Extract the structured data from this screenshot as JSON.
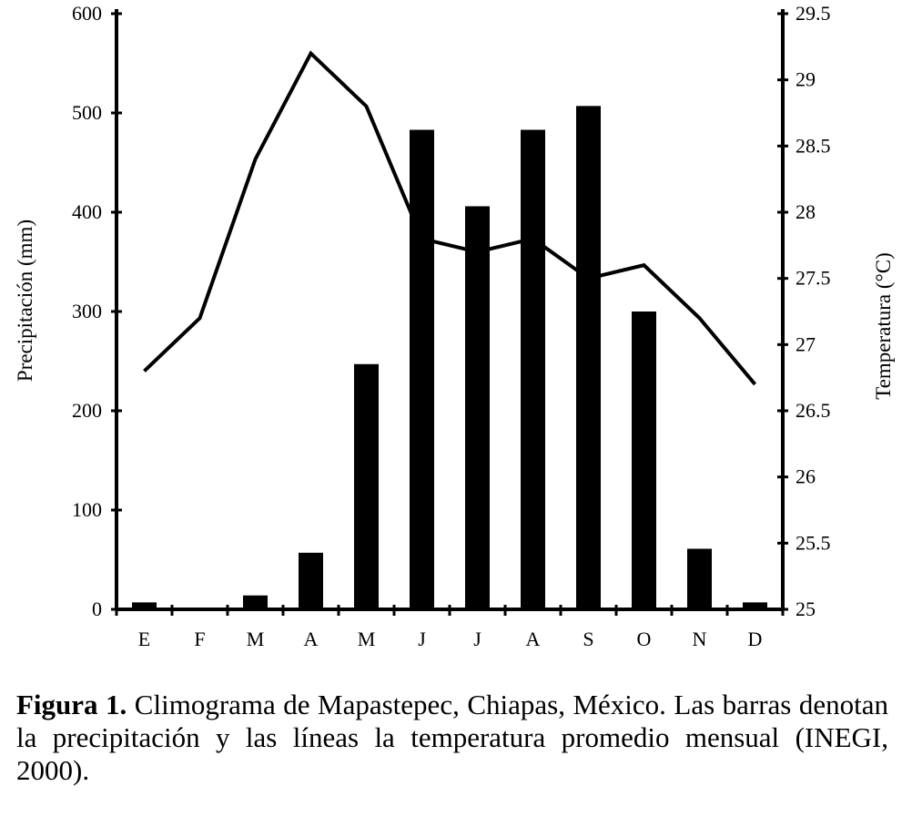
{
  "chart_data": {
    "type": "bar+line",
    "categories": [
      "E",
      "F",
      "M",
      "A",
      "M",
      "J",
      "J",
      "A",
      "S",
      "O",
      "N",
      "D"
    ],
    "series": [
      {
        "name": "Precipitación",
        "kind": "bar",
        "axis": "left",
        "values": [
          7,
          0,
          14,
          57,
          247,
          483,
          406,
          483,
          507,
          300,
          61,
          7
        ]
      },
      {
        "name": "Temperatura",
        "kind": "line",
        "axis": "right",
        "values": [
          26.8,
          27.2,
          28.4,
          29.2,
          28.8,
          27.8,
          27.7,
          27.8,
          27.5,
          27.6,
          27.2,
          26.7
        ]
      }
    ],
    "ylabel": "Precipitación (mm)",
    "y2label": "Temperatura (°C)",
    "ylim": [
      0,
      600
    ],
    "y2lim": [
      25,
      29.5
    ],
    "yticks": [
      "0",
      "100",
      "200",
      "300",
      "400",
      "500",
      "600"
    ],
    "y2ticks": [
      "25",
      "25.5",
      "26",
      "26.5",
      "27",
      "27.5",
      "28",
      "28.5",
      "29",
      "29.5"
    ],
    "colors": {
      "bar": "#000000",
      "line": "#000000",
      "axis": "#000000"
    }
  },
  "caption": {
    "lead": "Figura 1.",
    "text": " Climograma de Mapastepec, Chiapas, México. Las barras denotan la precipitación y las líneas la temperatura promedio mensual (INEGI, 2000)."
  }
}
